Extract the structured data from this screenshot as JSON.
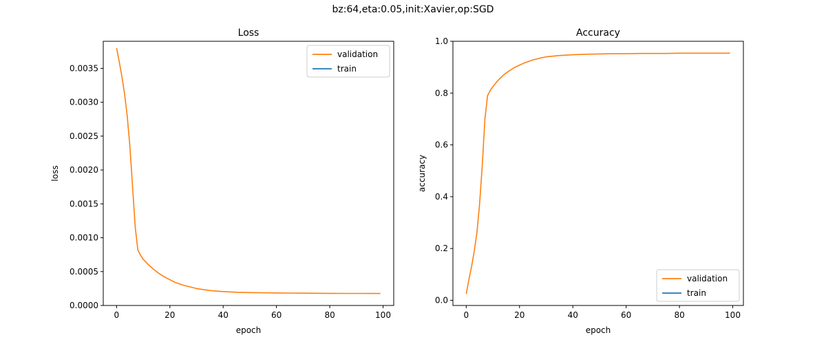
{
  "figure": {
    "suptitle": "bz:64,eta:0.05,init:Xavier,op:SGD"
  },
  "colors": {
    "validation": "#ff7f0e",
    "train": "#1f77b4"
  },
  "chart_data": [
    {
      "type": "line",
      "title": "Loss",
      "xlabel": "epoch",
      "ylabel": "loss",
      "xlim": [
        -5,
        104
      ],
      "ylim": [
        0,
        0.0039
      ],
      "xticks": [
        0,
        20,
        40,
        60,
        80,
        100
      ],
      "xtick_labels": [
        "0",
        "20",
        "40",
        "60",
        "80",
        "100"
      ],
      "yticks": [
        0,
        0.0005,
        0.001,
        0.0015,
        0.002,
        0.0025,
        0.003,
        0.0035
      ],
      "ytick_labels": [
        "0.0000",
        "0.0005",
        "0.0010",
        "0.0015",
        "0.0020",
        "0.0025",
        "0.0030",
        "0.0035"
      ],
      "legend": "top-right",
      "series": [
        {
          "name": "validation",
          "x": [
            0,
            1,
            2,
            3,
            4,
            5,
            6,
            7,
            8,
            9,
            10,
            12,
            14,
            16,
            18,
            20,
            22,
            25,
            28,
            30,
            35,
            40,
            45,
            50,
            55,
            60,
            65,
            70,
            75,
            80,
            85,
            90,
            95,
            99
          ],
          "y": [
            0.0038,
            0.0036,
            0.00338,
            0.00312,
            0.0028,
            0.00235,
            0.00175,
            0.00115,
            0.00082,
            0.00074,
            0.00068,
            0.0006,
            0.00053,
            0.00047,
            0.00042,
            0.00038,
            0.00034,
            0.0003,
            0.00027,
            0.00025,
            0.00022,
            0.000205,
            0.000195,
            0.00019,
            0.000187,
            0.000185,
            0.000183,
            0.000182,
            0.00018,
            0.000179,
            0.000178,
            0.000178,
            0.000177,
            0.000177
          ]
        },
        {
          "name": "train",
          "x": [],
          "y": []
        }
      ]
    },
    {
      "type": "line",
      "title": "Accuracy",
      "xlabel": "epoch",
      "ylabel": "accuracy",
      "xlim": [
        -5,
        104
      ],
      "ylim": [
        -0.02,
        1.0
      ],
      "xticks": [
        0,
        20,
        40,
        60,
        80,
        100
      ],
      "xtick_labels": [
        "0",
        "20",
        "40",
        "60",
        "80",
        "100"
      ],
      "yticks": [
        0,
        0.2,
        0.4,
        0.6,
        0.8,
        1.0
      ],
      "ytick_labels": [
        "0.0",
        "0.2",
        "0.4",
        "0.6",
        "0.8",
        "1.0"
      ],
      "legend": "bottom-right",
      "series": [
        {
          "name": "validation",
          "x": [
            0,
            1,
            2,
            3,
            4,
            5,
            6,
            7,
            8,
            9,
            10,
            12,
            14,
            16,
            18,
            20,
            22,
            25,
            28,
            30,
            35,
            40,
            45,
            50,
            55,
            60,
            65,
            70,
            75,
            80,
            85,
            90,
            95,
            99
          ],
          "y": [
            0.025,
            0.08,
            0.13,
            0.19,
            0.26,
            0.37,
            0.52,
            0.7,
            0.79,
            0.81,
            0.825,
            0.85,
            0.87,
            0.885,
            0.898,
            0.908,
            0.917,
            0.928,
            0.936,
            0.94,
            0.945,
            0.948,
            0.95,
            0.951,
            0.952,
            0.952,
            0.953,
            0.953,
            0.953,
            0.954,
            0.954,
            0.954,
            0.954,
            0.954
          ]
        },
        {
          "name": "train",
          "x": [],
          "y": []
        }
      ]
    }
  ]
}
